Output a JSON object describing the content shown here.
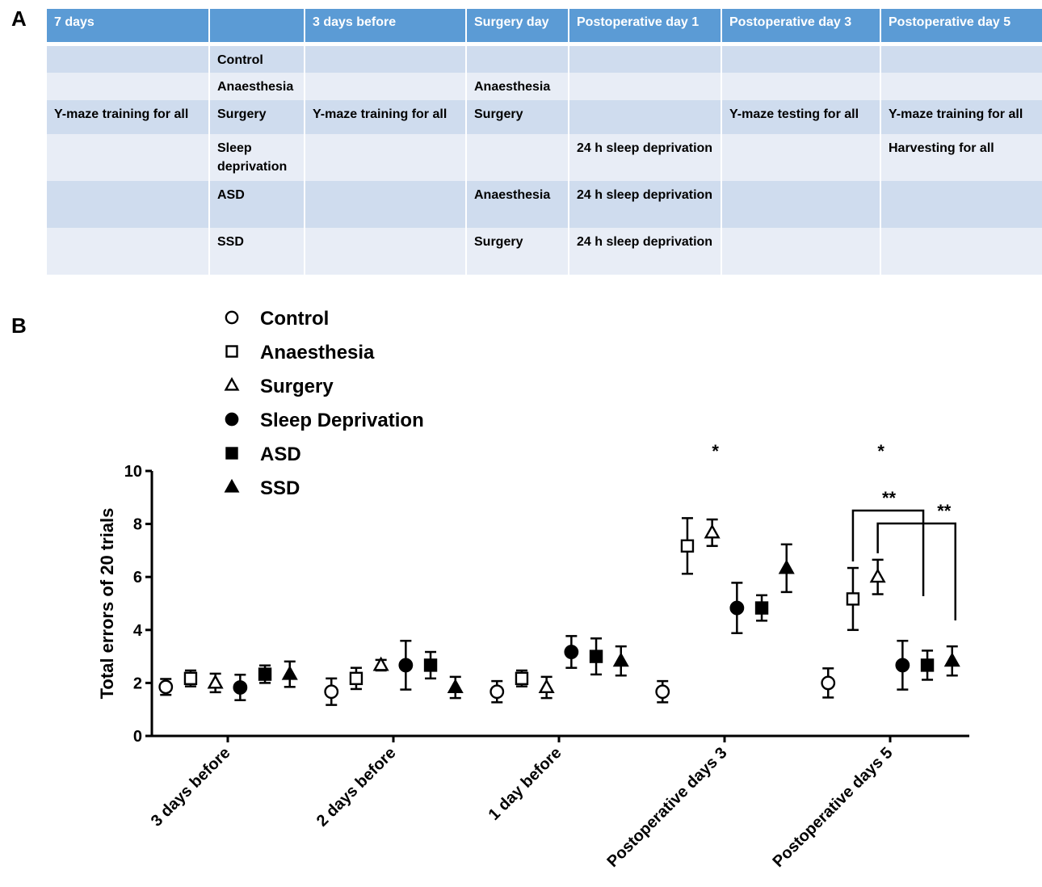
{
  "panel_a_label": "A",
  "panel_b_label": "B",
  "table": {
    "headers": [
      "7 days",
      "",
      "3 days before",
      "Surgery  day",
      "Postoperative day 1",
      "Postoperative day 3",
      "Postoperative day 5"
    ],
    "rows": [
      [
        "",
        "Control",
        "",
        "",
        "",
        "",
        ""
      ],
      [
        "",
        "Anaesthesia",
        "",
        "Anaesthesia",
        "",
        "",
        ""
      ],
      [
        "Y-maze training for all",
        "Surgery",
        "Y-maze training for all",
        "Surgery",
        "",
        "Y-maze testing for all",
        "Y-maze training for all"
      ],
      [
        "",
        "Sleep deprivation",
        "",
        "",
        "24 h sleep deprivation",
        "",
        "Harvesting for all"
      ],
      [
        "",
        "ASD",
        "",
        "Anaesthesia",
        "24 h sleep deprivation",
        "",
        ""
      ],
      [
        "",
        "SSD",
        "",
        "Surgery",
        "24 h sleep deprivation",
        "",
        ""
      ]
    ]
  },
  "chart_data": {
    "type": "scatter",
    "ylabel": "Total errors of 20 trials",
    "ylim": [
      0,
      10
    ],
    "yticks": [
      "0",
      "2",
      "4",
      "6",
      "8",
      "10"
    ],
    "categories": [
      "3 days before",
      "2 days before",
      "1 day  before",
      "Postoperative days 3",
      "Postoperative days 5"
    ],
    "legend_position": "top-left",
    "series": [
      {
        "name": "Control",
        "marker": "open-circle",
        "means": [
          1.85,
          1.67,
          1.67,
          1.67,
          2.0
        ],
        "sem": [
          0.3,
          0.5,
          0.4,
          0.4,
          0.55
        ]
      },
      {
        "name": "Anaesthesia",
        "marker": "open-square",
        "means": [
          2.17,
          2.17,
          2.17,
          7.17,
          5.17
        ],
        "sem": [
          0.3,
          0.4,
          0.3,
          1.05,
          1.17
        ]
      },
      {
        "name": "Surgery",
        "marker": "open-triangle",
        "means": [
          2.0,
          2.67,
          1.83,
          7.67,
          6.0
        ],
        "sem": [
          0.35,
          0.2,
          0.4,
          0.5,
          0.65
        ]
      },
      {
        "name": "Sleep Deprivation",
        "marker": "filled-circle",
        "means": [
          1.83,
          2.67,
          3.17,
          4.83,
          2.67
        ],
        "sem": [
          0.48,
          0.92,
          0.6,
          0.95,
          0.92
        ]
      },
      {
        "name": "ASD",
        "marker": "filled-square",
        "means": [
          2.33,
          2.67,
          3.0,
          4.83,
          2.67
        ],
        "sem": [
          0.33,
          0.5,
          0.68,
          0.48,
          0.55
        ]
      },
      {
        "name": "SSD",
        "marker": "filled-triangle",
        "means": [
          2.33,
          1.83,
          2.83,
          6.33,
          2.83
        ],
        "sem": [
          0.48,
          0.4,
          0.55,
          0.9,
          0.55
        ]
      }
    ],
    "annotations": [
      {
        "text": "*",
        "category": "Postoperative days 3",
        "series": "Surgery"
      },
      {
        "text": "*",
        "category": "Postoperative days 5",
        "series": "Surgery"
      },
      {
        "text": "**",
        "category": "Postoperative days 5",
        "between": [
          "Anaesthesia",
          "ASD"
        ]
      },
      {
        "text": "**",
        "category": "Postoperative days 5",
        "between": [
          "Surgery",
          "SSD"
        ]
      }
    ]
  }
}
